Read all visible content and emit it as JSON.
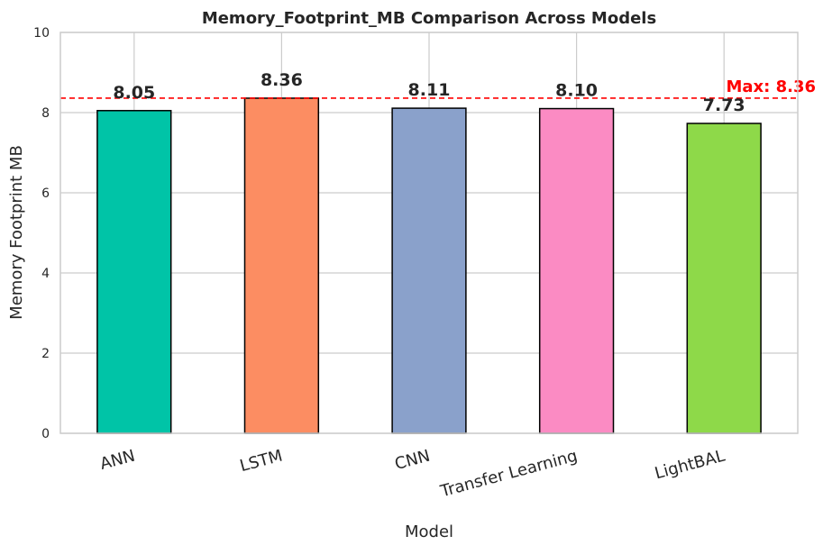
{
  "chart_data": {
    "type": "bar",
    "title": "Memory_Footprint_MB Comparison Across Models",
    "xlabel": "Model",
    "ylabel": "Memory Footprint MB",
    "categories": [
      "ANN",
      "LSTM",
      "CNN",
      "Transfer Learning",
      "LightBAL"
    ],
    "values": [
      8.05,
      8.36,
      8.11,
      8.1,
      7.73
    ],
    "value_labels": [
      "8.05",
      "8.36",
      "8.11",
      "8.10",
      "7.73"
    ],
    "colors": [
      "#00c4a7",
      "#fc8d62",
      "#8aa1cb",
      "#fb8bc3",
      "#8ed949"
    ],
    "ylim": [
      0,
      10
    ],
    "yticks": [
      0,
      2,
      4,
      6,
      8,
      10
    ],
    "grid": true,
    "max_line": {
      "value": 8.36,
      "label": "Max: 8.36",
      "color": "#ff0000"
    }
  }
}
